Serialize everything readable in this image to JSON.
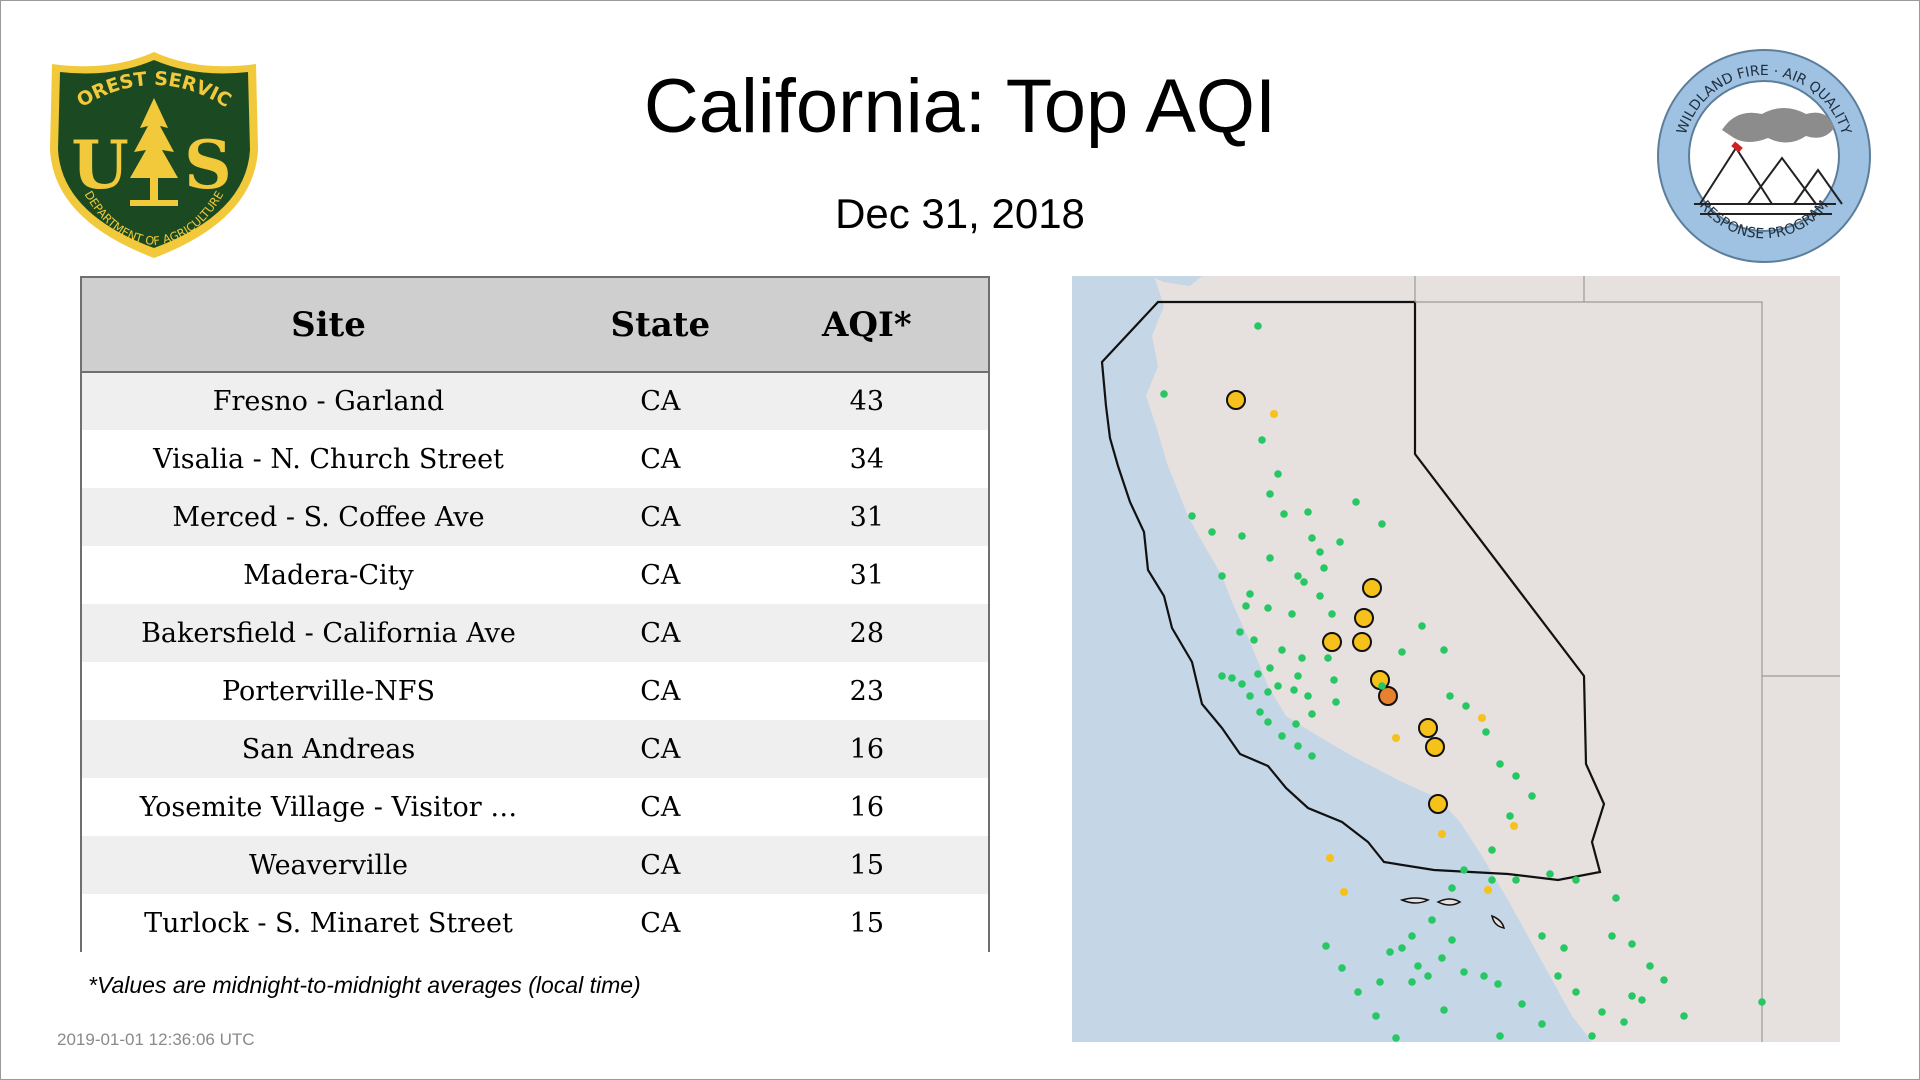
{
  "header": {
    "title": "California: Top AQI",
    "date": "Dec 31, 2018"
  },
  "logos": {
    "forest_service": {
      "top_text": "FOREST SERVICE",
      "initials_left": "U",
      "initials_right": "S",
      "bottom_text": "DEPARTMENT OF AGRICULTURE"
    },
    "program": {
      "top_text": "WILDLAND FIRE · AIR QUALITY",
      "bottom_text": "RESPONSE PROGRAM"
    }
  },
  "table": {
    "headers": [
      "Site",
      "State",
      "AQI*"
    ],
    "rows": [
      {
        "site": "Fresno - Garland",
        "state": "CA",
        "aqi": "43"
      },
      {
        "site": "Visalia - N. Church Street",
        "state": "CA",
        "aqi": "34"
      },
      {
        "site": "Merced - S. Coffee Ave",
        "state": "CA",
        "aqi": "31"
      },
      {
        "site": "Madera-City",
        "state": "CA",
        "aqi": "31"
      },
      {
        "site": "Bakersfield - California Ave",
        "state": "CA",
        "aqi": "28"
      },
      {
        "site": "Porterville-NFS",
        "state": "CA",
        "aqi": "23"
      },
      {
        "site": "San Andreas",
        "state": "CA",
        "aqi": "16"
      },
      {
        "site": "Yosemite Village - Visitor …",
        "state": "CA",
        "aqi": "16"
      },
      {
        "site": "Weaverville",
        "state": "CA",
        "aqi": "15"
      },
      {
        "site": "Turlock - S. Minaret Street",
        "state": "CA",
        "aqi": "15"
      }
    ]
  },
  "footnote": "*Values are midnight-to-midnight averages (local time)",
  "timestamp": "2019-01-01 12:36:06 UTC",
  "colors": {
    "ocean": "#c5d6e6",
    "land": "#e6e1df",
    "good": "#27c763",
    "moderate": "#f5c11a",
    "usg": "#e8812d",
    "no_data": "#bdbdbd",
    "header_bg": "#cfcfcf",
    "row_alt": "#efefef",
    "fs_green": "#1b4a22",
    "fs_yellow": "#f1c93b",
    "program_blue": "#9fc2e2"
  },
  "map": {
    "region": "California",
    "monitor_levels": {
      "large_moderate": 9,
      "large_usg": 1,
      "small_good": 150,
      "small_moderate": 8
    }
  }
}
